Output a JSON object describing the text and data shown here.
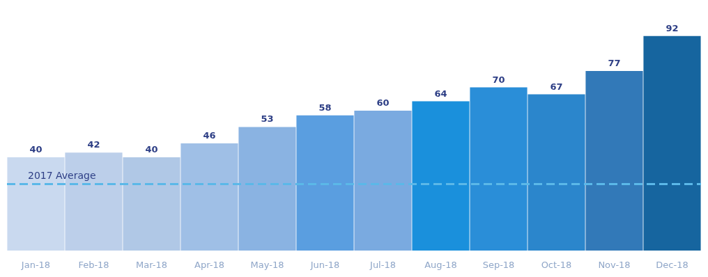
{
  "chart_data": {
    "type": "bar",
    "categories": [
      "Jan-18",
      "Feb-18",
      "Mar-18",
      "Apr-18",
      "May-18",
      "Jun-18",
      "Jul-18",
      "Aug-18",
      "Sep-18",
      "Oct-18",
      "Nov-18",
      "Dec-18"
    ],
    "values": [
      40,
      42,
      40,
      46,
      53,
      58,
      60,
      64,
      70,
      67,
      77,
      92
    ],
    "colors": [
      "#c9d9ef",
      "#bccfea",
      "#b0c8e6",
      "#9fbfe6",
      "#8ab3e2",
      "#5a9ee0",
      "#7aaae0",
      "#1a90dc",
      "#2a8ed8",
      "#2b86cc",
      "#3279b8",
      "#16659f"
    ],
    "data_labels": true,
    "ref_lines": [
      {
        "axis": "y",
        "value": 28.5,
        "label": "2017 Average",
        "color": "#5bb8e8",
        "line_style": "dashed"
      }
    ]
  }
}
